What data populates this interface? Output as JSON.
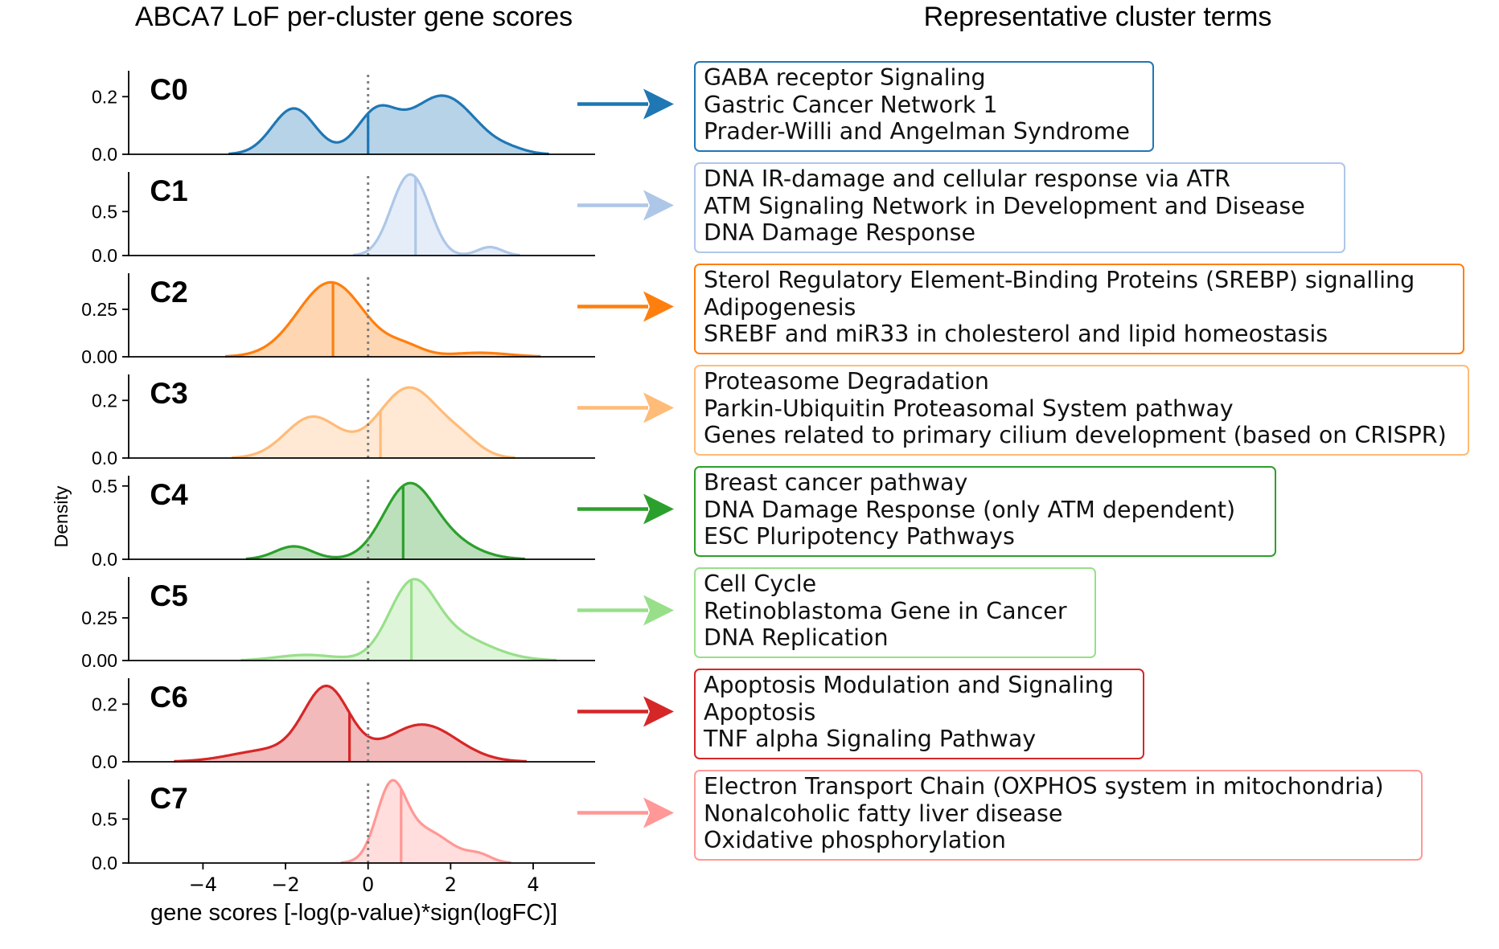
{
  "titles": {
    "left": "ABCA7 LoF per-cluster gene scores",
    "right": "Representative cluster terms"
  },
  "chart_data": {
    "type": "area",
    "chart_kind": "ridgeline density (KDE) plot, one panel per cluster, shared x axis",
    "title": "ABCA7 LoF per-cluster gene scores",
    "xlabel": "gene scores [-log(p-value)*sign(logFC)]",
    "ylabel": "Density",
    "xlim": [
      -5.8,
      5.5
    ],
    "x_ticks": [
      -4,
      -2,
      0,
      2,
      4
    ],
    "x_tick_labels": [
      "−4",
      "−2",
      "0",
      "2",
      "4"
    ],
    "reference_line": {
      "x": 0,
      "style": "dotted",
      "color": "#808080"
    },
    "grid": false,
    "legend": "none",
    "series": [
      {
        "name": "C0",
        "color": "#1f77b4",
        "ylim": [
          0,
          0.29
        ],
        "y_ticks": [
          0,
          0.2
        ],
        "y_tick_labels": [
          "0.0",
          "0.2"
        ],
        "median": 0.0,
        "peaks": [
          [
            -1.8,
            0.52,
            0.159
          ],
          [
            0.2,
            0.48,
            0.137
          ],
          [
            1.8,
            0.8,
            0.203
          ],
          [
            3.5,
            0.35,
            0.009
          ]
        ]
      },
      {
        "name": "C1",
        "color": "#aec7e8",
        "ylim": [
          0,
          0.95
        ],
        "y_ticks": [
          0,
          0.5
        ],
        "y_tick_labels": [
          "0.0",
          "0.5"
        ],
        "median": 1.15,
        "peaks": [
          [
            0.9,
            0.4,
            0.749
          ],
          [
            1.35,
            0.35,
            0.321
          ],
          [
            2.95,
            0.3,
            0.096
          ]
        ]
      },
      {
        "name": "C2",
        "color": "#ff7f0e",
        "ylim": [
          0,
          0.44
        ],
        "y_ticks": [
          0,
          0.25
        ],
        "y_tick_labels": [
          "0.00",
          "0.25"
        ],
        "median": -0.85,
        "peaks": [
          [
            -0.9,
            0.8,
            0.392
          ],
          [
            0.9,
            0.45,
            0.048
          ],
          [
            2.7,
            0.7,
            0.021
          ]
        ]
      },
      {
        "name": "C3",
        "color": "#ffbb78",
        "ylim": [
          0,
          0.29
        ],
        "y_ticks": [
          0,
          0.2
        ],
        "y_tick_labels": [
          "0.0",
          "0.2"
        ],
        "median": 0.3,
        "peaks": [
          [
            -1.35,
            0.65,
            0.142
          ],
          [
            1.0,
            0.75,
            0.244
          ],
          [
            2.3,
            0.45,
            0.041
          ]
        ]
      },
      {
        "name": "C4",
        "color": "#2ca02c",
        "ylim": [
          0,
          0.57
        ],
        "y_ticks": [
          0,
          0.5
        ],
        "y_tick_labels": [
          "0.0",
          "0.5"
        ],
        "median": 0.85,
        "peaks": [
          [
            -1.8,
            0.45,
            0.088
          ],
          [
            0.95,
            0.6,
            0.469
          ],
          [
            1.9,
            0.7,
            0.119
          ]
        ]
      },
      {
        "name": "C5",
        "color": "#98df8a",
        "ylim": [
          0,
          0.49
        ],
        "y_ticks": [
          0,
          0.25
        ],
        "y_tick_labels": [
          "0.00",
          "0.25"
        ],
        "median": 1.05,
        "peaks": [
          [
            -1.5,
            0.7,
            0.033
          ],
          [
            1.05,
            0.55,
            0.389
          ],
          [
            2.0,
            0.9,
            0.147
          ]
        ]
      },
      {
        "name": "C6",
        "color": "#d62728",
        "ylim": [
          0,
          0.29
        ],
        "y_ticks": [
          0,
          0.2
        ],
        "y_tick_labels": [
          "0.0",
          "0.2"
        ],
        "median": -0.45,
        "peaks": [
          [
            -1.0,
            0.55,
            0.248
          ],
          [
            -2.4,
            0.9,
            0.04
          ],
          [
            1.3,
            0.85,
            0.129
          ]
        ]
      },
      {
        "name": "C7",
        "color": "#ff9896",
        "ylim": [
          0,
          0.95
        ],
        "y_ticks": [
          0,
          0.5
        ],
        "y_tick_labels": [
          "0.0",
          "0.5"
        ],
        "median": 0.8,
        "peaks": [
          [
            0.55,
            0.35,
            0.759
          ],
          [
            1.35,
            0.65,
            0.368
          ],
          [
            2.7,
            0.3,
            0.075
          ]
        ]
      }
    ]
  },
  "term_boxes": [
    {
      "cluster": "C0",
      "color": "#1f77b4",
      "terms": [
        "GABA receptor Signaling",
        "Gastric Cancer Network 1",
        "Prader-Willi and Angelman Syndrome"
      ]
    },
    {
      "cluster": "C1",
      "color": "#aec7e8",
      "terms": [
        "DNA IR-damage and cellular response via ATR",
        "ATM Signaling Network in Development and Disease",
        "DNA Damage Response"
      ]
    },
    {
      "cluster": "C2",
      "color": "#ff7f0e",
      "terms": [
        "Sterol Regulatory Element-Binding Proteins (SREBP) signalling",
        "Adipogenesis",
        "SREBF and miR33 in cholesterol and lipid homeostasis"
      ]
    },
    {
      "cluster": "C3",
      "color": "#ffbb78",
      "terms": [
        "Proteasome Degradation",
        "Parkin-Ubiquitin Proteasomal System pathway",
        "Genes related to primary cilium development (based on CRISPR)"
      ]
    },
    {
      "cluster": "C4",
      "color": "#2ca02c",
      "terms": [
        "Breast cancer pathway",
        "DNA Damage Response (only ATM dependent)",
        "ESC Pluripotency Pathways"
      ]
    },
    {
      "cluster": "C5",
      "color": "#98df8a",
      "terms": [
        "Cell Cycle",
        "Retinoblastoma Gene in Cancer",
        "DNA Replication"
      ]
    },
    {
      "cluster": "C6",
      "color": "#d62728",
      "terms": [
        "Apoptosis Modulation and Signaling",
        "Apoptosis",
        "TNF alpha Signaling Pathway"
      ]
    },
    {
      "cluster": "C7",
      "color": "#ff9896",
      "terms": [
        "Electron Transport Chain (OXPHOS system in mitochondria)",
        "Nonalcoholic fatty liver disease",
        "Oxidative phosphorylation"
      ]
    }
  ]
}
